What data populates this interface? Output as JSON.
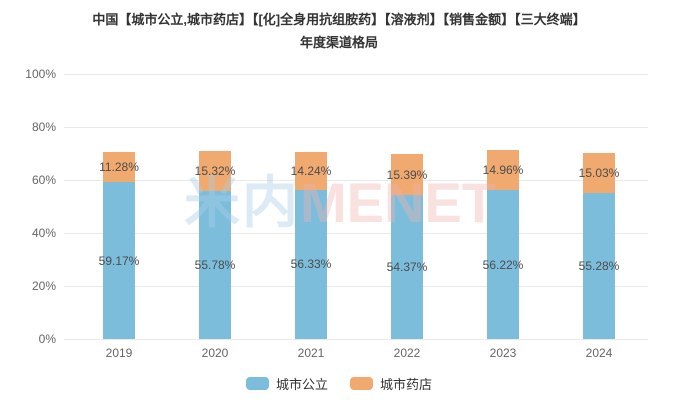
{
  "title": {
    "line1": "中国【城市公立,城市药店】【[化]全身用抗组胺药】【溶液剂】【销售金额】【三大终端】",
    "line2": "年度渠道格局"
  },
  "watermark": {
    "cn": "米内",
    "en": "MENET"
  },
  "chart_data": {
    "type": "bar",
    "stacked": true,
    "title": "中国【城市公立,城市药店】【[化]全身用抗组胺药】【溶液剂】【销售金额】【三大终端】年度渠道格局",
    "categories": [
      "2019",
      "2020",
      "2021",
      "2022",
      "2023",
      "2024"
    ],
    "series": [
      {
        "name": "城市公立",
        "color": "#7CBDDC",
        "values": [
          59.17,
          55.78,
          56.33,
          54.37,
          56.22,
          55.28
        ],
        "labels": [
          "59.17%",
          "55.78%",
          "56.33%",
          "54.37%",
          "56.22%",
          "55.28%"
        ]
      },
      {
        "name": "城市药店",
        "color": "#F0A96E",
        "values": [
          11.28,
          15.32,
          14.24,
          15.39,
          14.96,
          15.03
        ],
        "labels": [
          "11.28%",
          "15.32%",
          "14.24%",
          "15.39%",
          "14.96%",
          "15.03%"
        ]
      }
    ],
    "y_ticks": [
      "0%",
      "20%",
      "40%",
      "60%",
      "80%",
      "100%"
    ],
    "ylim": [
      0,
      100
    ],
    "xlabel": "",
    "ylabel": "",
    "grid": true,
    "legend_position": "bottom"
  }
}
